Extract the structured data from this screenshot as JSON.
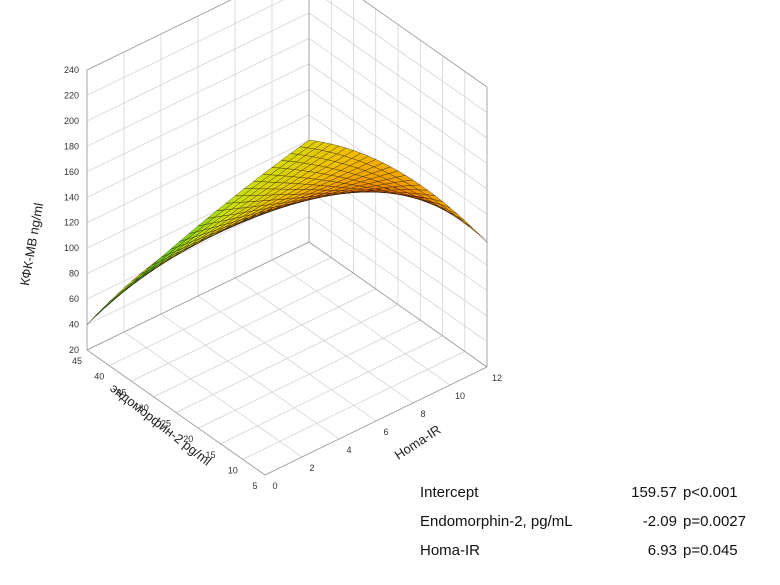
{
  "chart_data": {
    "type": "surface",
    "zlabel": "КФК-МВ ng/ml",
    "ylabel": "эндоморфин-2 pg/ml",
    "xlabel": "Homa-IR",
    "z_ticks": [
      "240",
      "220",
      "200",
      "180",
      "160",
      "140",
      "120",
      "100",
      "80",
      "60",
      "40",
      "20"
    ],
    "y_ticks": [
      "45",
      "40",
      "35",
      "30",
      "25",
      "20",
      "15",
      "10",
      "5"
    ],
    "x_ticks": [
      "0",
      "2",
      "4",
      "6",
      "8",
      "10",
      "12"
    ],
    "z_range": [
      20,
      240
    ],
    "endomorphin_range": [
      5,
      45
    ],
    "homa_range": [
      0,
      12
    ],
    "grid": true,
    "colormap": [
      "#1a7a2a",
      "#3cc21c",
      "#c8e010",
      "#f0c000",
      "#f07a00",
      "#e02000",
      "#b00000",
      "#900000"
    ],
    "surface_points": [
      {
        "homa": 0,
        "endomorphin": 45,
        "kfk": 40
      },
      {
        "homa": 0,
        "endomorphin": 25,
        "kfk": 150
      },
      {
        "homa": 0,
        "endomorphin": 5,
        "kfk": 232
      },
      {
        "homa": 6,
        "endomorphin": 45,
        "kfk": 75
      },
      {
        "homa": 6,
        "endomorphin": 25,
        "kfk": 140
      },
      {
        "homa": 6,
        "endomorphin": 5,
        "kfk": 210
      },
      {
        "homa": 12,
        "endomorphin": 45,
        "kfk": 100
      },
      {
        "homa": 12,
        "endomorphin": 25,
        "kfk": 125
      },
      {
        "homa": 12,
        "endomorphin": 5,
        "kfk": 118
      }
    ]
  },
  "stats": [
    {
      "name": "Intercept",
      "coef": "159.57",
      "p": "p<0.001"
    },
    {
      "name": "Endomorphin-2, pg/mL",
      "coef": "-2.09",
      "p": "p=0.0027"
    },
    {
      "name": "Homa-IR",
      "coef": "6.93",
      "p": "p=0.045"
    }
  ]
}
